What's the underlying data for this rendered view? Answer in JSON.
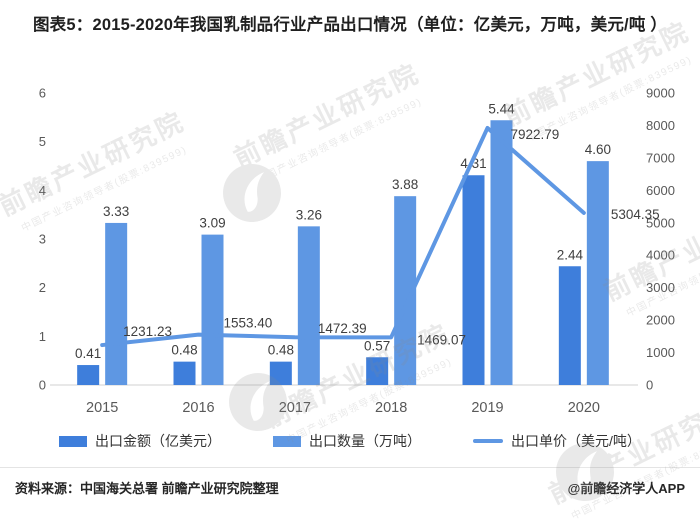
{
  "title": "图表5：2015-2020年我国乳制品行业产品出口情况（单位：亿美元，万吨，美元/吨 ）",
  "chart_data": {
    "type": "bar",
    "subtype": "combo-bar-line-dual-axis",
    "categories": [
      "2015",
      "2016",
      "2017",
      "2018",
      "2019",
      "2020"
    ],
    "bar_series": [
      {
        "name": "出口金额（亿美元）",
        "axis": "left",
        "color": "#3E7EDB",
        "values": [
          0.41,
          0.48,
          0.48,
          0.57,
          4.31,
          2.44
        ],
        "labels": [
          "0.41",
          "0.48",
          "0.48",
          "0.57",
          "4.31",
          "2.44"
        ]
      },
      {
        "name": "出口数量（万吨）",
        "axis": "left",
        "color": "#5E97E3",
        "values": [
          3.33,
          3.09,
          3.26,
          3.88,
          5.44,
          4.6
        ],
        "labels": [
          "3.33",
          "3.09",
          "3.26",
          "3.88",
          "5.44",
          "4.60"
        ]
      }
    ],
    "line_series": [
      {
        "name": "出口单价（美元/吨）",
        "axis": "right",
        "color": "#5E97E3",
        "values": [
          1231.23,
          1553.4,
          1472.39,
          1469.07,
          7922.79,
          5304.35
        ],
        "labels": [
          "1231.23",
          "1553.40",
          "1472.39",
          "1469.07",
          "7922.79",
          "5304.35"
        ]
      }
    ],
    "left_axis": {
      "min": 0,
      "max": 6,
      "ticks": [
        "0",
        "1",
        "2",
        "3",
        "4",
        "5",
        "6"
      ]
    },
    "right_axis": {
      "min": 0,
      "max": 9000,
      "ticks": [
        "0",
        "1000",
        "2000",
        "3000",
        "4000",
        "5000",
        "6000",
        "7000",
        "8000",
        "9000"
      ]
    },
    "grid": false,
    "legend_position": "bottom"
  },
  "legend": {
    "items": [
      {
        "label": "出口金额（亿美元）",
        "type": "bar",
        "color": "#3E7EDB"
      },
      {
        "label": "出口数量（万吨）",
        "type": "bar",
        "color": "#5E97E3"
      },
      {
        "label": "出口单价（美元/吨）",
        "type": "line",
        "color": "#5E97E3"
      }
    ]
  },
  "footer": {
    "source": "资料来源：中国海关总署 前瞻产业研究院整理",
    "credit": "@前瞻经济学人APP"
  },
  "watermark": {
    "brand": "前瞻产业研究院",
    "subtitle": "中国产业咨询领导者(股票:839599)"
  }
}
